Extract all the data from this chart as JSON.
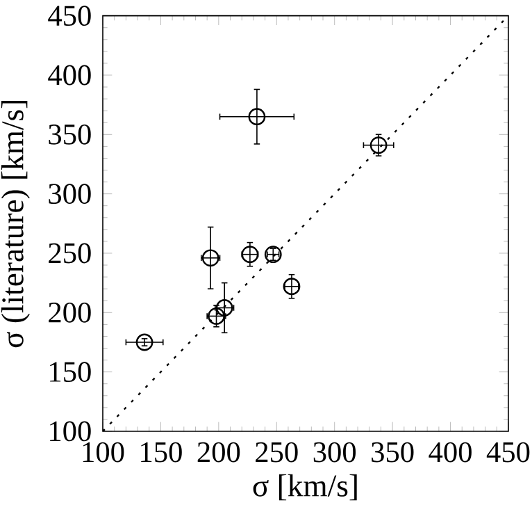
{
  "chart_data": {
    "type": "scatter",
    "xlabel": "σ [km/s]",
    "ylabel": "σ (literature) [km/s]",
    "xlim": [
      100,
      450
    ],
    "ylim": [
      100,
      450
    ],
    "xticks": [
      100,
      150,
      200,
      250,
      300,
      350,
      400,
      450
    ],
    "yticks": [
      100,
      150,
      200,
      250,
      300,
      350,
      400,
      450
    ],
    "marker": "circle",
    "series": [
      {
        "color": "#000000",
        "x": [
          136,
          193,
          198,
          205,
          227,
          247,
          263,
          233,
          338
        ],
        "values": [
          175,
          246,
          197,
          204,
          249,
          249,
          222,
          365,
          341
        ],
        "errors": [
          3,
          26,
          9,
          21,
          10,
          5,
          10,
          23,
          9
        ],
        "xerrors": [
          16,
          8,
          8,
          8,
          7,
          5,
          6,
          32,
          13
        ]
      },
      {
        "type": "line",
        "color": "#000000",
        "line_style": "dotted",
        "marker": "none",
        "x": [
          100,
          450
        ],
        "values": [
          100,
          450
        ]
      }
    ]
  }
}
